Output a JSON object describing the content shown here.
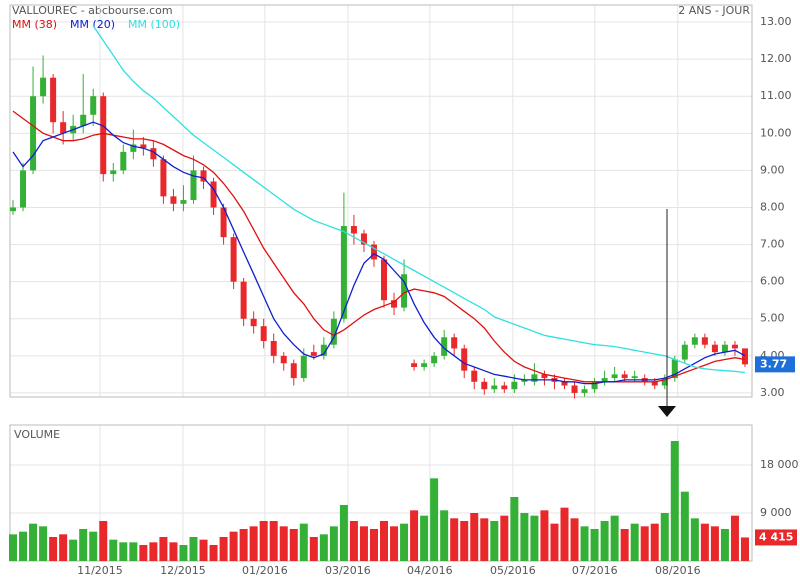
{
  "chart_data": [
    {
      "type": "candlestick",
      "title": "VALLOUREC - abcbourse.com",
      "subtitle": "2 ANS - JOUR",
      "x": [
        0,
        1,
        2,
        3,
        4,
        5,
        6,
        7,
        8,
        9,
        10,
        11,
        12,
        13,
        14,
        15,
        16,
        17,
        18,
        19,
        20,
        21,
        22,
        23,
        24,
        25,
        26,
        27,
        28,
        29,
        30,
        31,
        32,
        33,
        34,
        35,
        36,
        37,
        38,
        39,
        40,
        41,
        42,
        43,
        44,
        45,
        46,
        47,
        48,
        49,
        50,
        51,
        52,
        53,
        54,
        55,
        56,
        57,
        58,
        59,
        60,
        61,
        62,
        63,
        64,
        65,
        66,
        67,
        68,
        69,
        70,
        71,
        72,
        73
      ],
      "open": [
        7.9,
        8.0,
        9.0,
        11.0,
        11.5,
        10.3,
        10.0,
        10.2,
        10.5,
        11.0,
        8.9,
        9.0,
        9.5,
        9.7,
        9.6,
        9.3,
        8.3,
        8.1,
        8.2,
        9.0,
        8.7,
        8.0,
        7.2,
        6.0,
        5.0,
        4.8,
        4.4,
        4.0,
        3.8,
        3.4,
        4.1,
        4.0,
        4.3,
        5.0,
        7.5,
        7.3,
        7.0,
        6.6,
        5.5,
        5.3,
        3.8,
        3.7,
        3.8,
        4.0,
        4.5,
        4.2,
        3.6,
        3.3,
        3.1,
        3.2,
        3.1,
        3.3,
        3.3,
        3.5,
        3.4,
        3.3,
        3.2,
        3.0,
        3.1,
        3.3,
        3.4,
        3.5,
        3.4,
        3.4,
        3.3,
        3.2,
        3.4,
        3.9,
        4.3,
        4.5,
        4.3,
        4.1,
        4.3,
        4.2
      ],
      "high": [
        8.2,
        9.2,
        11.8,
        12.1,
        11.6,
        10.6,
        10.5,
        11.6,
        11.2,
        11.1,
        9.2,
        9.7,
        10.1,
        9.9,
        9.8,
        9.4,
        8.5,
        8.6,
        9.4,
        9.1,
        8.8,
        8.1,
        7.3,
        6.1,
        5.2,
        5.0,
        4.6,
        4.1,
        3.9,
        4.2,
        4.3,
        4.5,
        5.2,
        8.4,
        7.8,
        7.4,
        7.1,
        6.7,
        5.7,
        6.6,
        3.9,
        3.9,
        4.1,
        4.7,
        4.6,
        4.3,
        3.7,
        3.4,
        3.4,
        3.3,
        3.5,
        3.5,
        3.8,
        3.6,
        3.5,
        3.4,
        3.3,
        3.2,
        3.4,
        3.6,
        3.7,
        3.6,
        3.6,
        3.5,
        3.4,
        3.5,
        4.0,
        4.4,
        4.6,
        4.6,
        4.4,
        4.4,
        4.4,
        4.2
      ],
      "low": [
        7.8,
        7.9,
        8.9,
        10.8,
        10.0,
        9.7,
        9.8,
        10.0,
        10.2,
        8.7,
        8.7,
        8.9,
        9.3,
        9.4,
        9.1,
        8.1,
        7.9,
        7.9,
        8.1,
        8.5,
        7.8,
        7.0,
        5.8,
        4.8,
        4.6,
        4.2,
        3.8,
        3.6,
        3.2,
        3.3,
        3.9,
        3.9,
        4.2,
        4.9,
        7.0,
        6.8,
        6.4,
        5.3,
        5.1,
        5.2,
        3.6,
        3.6,
        3.7,
        3.9,
        4.0,
        3.4,
        3.1,
        2.95,
        3.0,
        3.0,
        3.0,
        3.2,
        3.2,
        3.2,
        3.1,
        3.1,
        2.85,
        2.9,
        3.0,
        3.2,
        3.3,
        3.3,
        3.3,
        3.2,
        3.1,
        3.1,
        3.3,
        3.8,
        4.2,
        4.2,
        4.0,
        4.0,
        4.0,
        3.7
      ],
      "close": [
        8.0,
        9.0,
        11.0,
        11.5,
        10.3,
        10.0,
        10.2,
        10.5,
        11.0,
        8.9,
        9.0,
        9.5,
        9.7,
        9.6,
        9.3,
        8.3,
        8.1,
        8.2,
        9.0,
        8.7,
        8.0,
        7.2,
        6.0,
        5.0,
        4.8,
        4.4,
        4.0,
        3.8,
        3.4,
        4.0,
        4.0,
        4.3,
        5.0,
        7.5,
        7.3,
        7.0,
        6.6,
        5.5,
        5.3,
        6.2,
        3.7,
        3.8,
        4.0,
        4.5,
        4.2,
        3.6,
        3.3,
        3.1,
        3.2,
        3.1,
        3.3,
        3.35,
        3.5,
        3.4,
        3.3,
        3.2,
        3.0,
        3.1,
        3.3,
        3.4,
        3.5,
        3.4,
        3.45,
        3.3,
        3.2,
        3.4,
        3.9,
        4.3,
        4.5,
        4.3,
        4.1,
        4.3,
        4.2,
        3.77
      ],
      "up_color": "#33b035",
      "down_color": "#e8282a",
      "series": [
        {
          "name": "MM (38)",
          "color": "#e01010",
          "values": [
            10.6,
            10.4,
            10.2,
            10.0,
            9.9,
            9.8,
            9.8,
            9.85,
            9.95,
            10.0,
            9.95,
            9.9,
            9.85,
            9.85,
            9.8,
            9.7,
            9.55,
            9.4,
            9.3,
            9.15,
            8.95,
            8.65,
            8.3,
            7.9,
            7.4,
            6.9,
            6.5,
            6.1,
            5.7,
            5.4,
            5.0,
            4.7,
            4.55,
            4.7,
            4.9,
            5.1,
            5.25,
            5.35,
            5.45,
            5.7,
            5.8,
            5.75,
            5.7,
            5.6,
            5.4,
            5.2,
            5.0,
            4.75,
            4.4,
            4.1,
            3.85,
            3.7,
            3.6,
            3.5,
            3.45,
            3.4,
            3.35,
            3.3,
            3.3,
            3.3,
            3.3,
            3.3,
            3.3,
            3.3,
            3.3,
            3.35,
            3.45,
            3.55,
            3.65,
            3.75,
            3.85,
            3.9,
            3.95,
            3.9
          ]
        },
        {
          "name": "MM (20)",
          "color": "#1020d0",
          "values": [
            9.5,
            9.1,
            9.4,
            9.8,
            9.9,
            10.0,
            10.1,
            10.2,
            10.3,
            10.2,
            9.95,
            9.75,
            9.65,
            9.6,
            9.5,
            9.3,
            9.1,
            8.95,
            8.85,
            8.8,
            8.5,
            8.0,
            7.4,
            6.8,
            6.2,
            5.6,
            5.0,
            4.6,
            4.3,
            4.05,
            3.95,
            4.05,
            4.5,
            5.2,
            5.9,
            6.5,
            6.75,
            6.6,
            6.3,
            6.0,
            5.4,
            4.9,
            4.5,
            4.2,
            4.0,
            3.8,
            3.7,
            3.6,
            3.5,
            3.45,
            3.4,
            3.35,
            3.35,
            3.35,
            3.35,
            3.3,
            3.3,
            3.25,
            3.25,
            3.3,
            3.3,
            3.35,
            3.35,
            3.35,
            3.35,
            3.4,
            3.5,
            3.65,
            3.8,
            3.95,
            4.05,
            4.1,
            4.15,
            4.0
          ]
        },
        {
          "name": "MM (100)",
          "color": "#30e0e0",
          "values": [
            null,
            null,
            null,
            null,
            null,
            null,
            null,
            null,
            12.9,
            12.5,
            12.1,
            11.7,
            11.4,
            11.15,
            10.95,
            10.7,
            10.45,
            10.2,
            9.95,
            9.75,
            9.55,
            9.35,
            9.15,
            8.95,
            8.75,
            8.55,
            8.35,
            8.15,
            7.95,
            7.8,
            7.65,
            7.55,
            7.45,
            7.35,
            7.2,
            7.05,
            6.9,
            6.75,
            6.6,
            6.45,
            6.3,
            6.15,
            6.0,
            5.85,
            5.7,
            5.55,
            5.4,
            5.25,
            5.05,
            4.95,
            4.85,
            4.75,
            4.65,
            4.55,
            4.5,
            4.45,
            4.4,
            4.35,
            4.3,
            4.28,
            4.25,
            4.2,
            4.15,
            4.1,
            4.05,
            4.0,
            3.9,
            3.8,
            3.7,
            3.65,
            3.62,
            3.6,
            3.58,
            3.55
          ]
        }
      ],
      "last_color": "#1e6fd8",
      "xlim": [
        -0.3,
        73.7
      ],
      "xticks": [
        {
          "value": 8.67,
          "label": "11/2015"
        },
        {
          "value": 16.95,
          "label": "12/2015"
        },
        {
          "value": 25.12,
          "label": "01/2016"
        },
        {
          "value": 33.4,
          "label": "03/2016"
        },
        {
          "value": 41.57,
          "label": "04/2016"
        },
        {
          "value": 49.85,
          "label": "05/2016"
        },
        {
          "value": 58.02,
          "label": "07/2016"
        },
        {
          "value": 66.3,
          "label": "08/2016"
        }
      ],
      "ylim": [
        2.89,
        13.46
      ],
      "yticks": [
        {
          "value": 3,
          "label": "3.00"
        },
        {
          "value": 4,
          "label": "4.00"
        },
        {
          "value": 5,
          "label": "5.00"
        },
        {
          "value": 6,
          "label": "6.00"
        },
        {
          "value": 7,
          "label": "7.00"
        },
        {
          "value": 8,
          "label": "8.00"
        },
        {
          "value": 9,
          "label": "9.00"
        },
        {
          "value": 10,
          "label": "10.00"
        },
        {
          "value": 11,
          "label": "11.00"
        },
        {
          "value": 12,
          "label": "12.00"
        },
        {
          "value": 13,
          "label": "13.00"
        }
      ],
      "grid": true
    },
    {
      "type": "bar",
      "title": "VOLUME",
      "values": [
        5000,
        5500,
        7000,
        6500,
        4500,
        5000,
        4000,
        6000,
        5500,
        7500,
        4000,
        3500,
        3500,
        3000,
        3500,
        4500,
        3500,
        3000,
        4500,
        4000,
        3000,
        4500,
        5500,
        6000,
        6500,
        7500,
        7500,
        6500,
        6000,
        7000,
        4500,
        5000,
        6500,
        10500,
        7500,
        6500,
        6000,
        7500,
        6500,
        7000,
        9500,
        8500,
        15500,
        9500,
        8000,
        7500,
        9000,
        8000,
        7500,
        8500,
        12000,
        9000,
        8500,
        9500,
        7000,
        10000,
        8000,
        6500,
        6000,
        7500,
        8500,
        6000,
        7000,
        6500,
        7000,
        9000,
        22500,
        13000,
        8000,
        7000,
        6500,
        6000,
        8500,
        4415
      ],
      "value_labels": [
        null,
        null,
        null,
        null,
        null,
        null,
        null,
        null,
        null,
        null,
        null,
        null,
        null,
        null,
        null,
        null,
        null,
        null,
        null,
        null,
        null,
        null,
        null,
        null,
        null,
        null,
        null,
        null,
        null,
        null,
        null,
        null,
        null,
        null,
        null,
        null,
        null,
        null,
        null,
        null,
        null,
        null,
        null,
        null,
        null,
        null,
        null,
        null,
        null,
        null,
        null,
        null,
        null,
        null,
        null,
        null,
        null,
        null,
        null,
        null,
        null,
        null,
        null,
        null,
        null,
        null,
        null,
        null,
        null,
        null,
        null,
        null,
        null,
        "4 415"
      ],
      "ylim": [
        0,
        25500
      ],
      "yticks": [
        {
          "value": 9000,
          "label": "9 000"
        },
        {
          "value": 18000,
          "label": "18 000"
        }
      ],
      "grid": true
    }
  ]
}
